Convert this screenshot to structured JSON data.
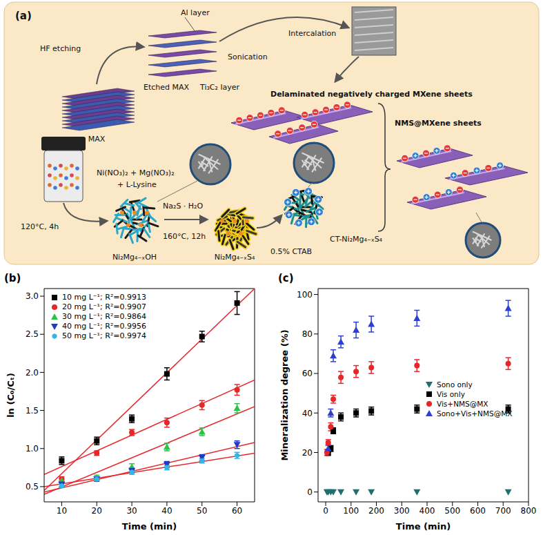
{
  "diagram": {
    "panel": "(a)",
    "labels": {
      "al_layer": "Al layer",
      "hf_etching": "HF etching",
      "etched_max": "Etched MAX",
      "ti3c2_layer": "Ti₃C₂ layer",
      "sonication": "Sonication",
      "intercalation": "Intercalation",
      "delaminated": "Delaminated negatively charged MXene sheets",
      "max": "MAX",
      "reagents_1": "Ni(NO₃)₂ + Mg(NO₃)₂",
      "reagents_2": "+ L-Lysine",
      "nms_mxene": "NMS@MXene sheets",
      "ct_product": "CT-Ni₂Mg₄₋ₓS₄",
      "hydrothermal_1": "120°C, 4h",
      "hydroxide": "Ni₂Mg₄₋ₓOH",
      "sulfur_source": "Na₂S · H₂O",
      "hydrothermal_2": "160°C, 12h",
      "sulfide": "Ni₂Mg₄₋ₓS₄",
      "ctab": "0.5% CTAB"
    }
  },
  "chart_data": [
    {
      "type": "scatter",
      "title": "(b)",
      "x_label": "Time (min)",
      "y_label": "ln (C₀/Cₜ)",
      "xlim": [
        5,
        65
      ],
      "xticks": [
        10,
        20,
        30,
        40,
        50,
        60
      ],
      "ylim": [
        0.3,
        3.1
      ],
      "yticks": [
        0.5,
        {
          "value": 1,
          "label": "1.0"
        },
        1.5,
        {
          "value": 2,
          "label": "2.0"
        },
        2.5,
        {
          "value": 3,
          "label": "3.0"
        }
      ],
      "grid": false,
      "legend": "top left",
      "x": [
        10,
        20,
        30,
        40,
        50,
        60
      ],
      "fit": {
        "x": [
          5,
          65
        ],
        "color": "#e8262a"
      },
      "series": [
        {
          "name": "10 mg L⁻¹; R²=0.9913",
          "color": "#000000",
          "marker": "square",
          "values": [
            0.84,
            1.1,
            1.39,
            1.98,
            2.47,
            2.91
          ],
          "errors": [
            0.05,
            0.05,
            0.05,
            0.08,
            0.07,
            0.15
          ],
          "fit_values": [
            0.45,
            3.1
          ]
        },
        {
          "name": "20 mg L⁻¹; R²=0.9907",
          "color": "#e8262a",
          "marker": "circle",
          "values": [
            0.6,
            0.94,
            1.21,
            1.34,
            1.57,
            1.77
          ],
          "errors": [
            0.03,
            0.03,
            0.04,
            0.06,
            0.06,
            0.07
          ],
          "fit_values": [
            0.66,
            1.9
          ]
        },
        {
          "name": "30 mg L⁻¹; R²=0.9864",
          "color": "#2bc24a",
          "marker": "triangle",
          "values": [
            0.58,
            0.62,
            0.76,
            1.02,
            1.22,
            1.53
          ],
          "errors": [
            0.03,
            0.03,
            0.04,
            0.05,
            0.05,
            0.06
          ],
          "fit_values": [
            0.4,
            1.55
          ]
        },
        {
          "name": "40 mg L⁻¹; R²=0.9956",
          "color": "#2438c8",
          "marker": "triangle_down",
          "values": [
            0.53,
            0.6,
            0.71,
            0.79,
            0.88,
            1.05
          ],
          "errors": [
            0.03,
            0.03,
            0.03,
            0.04,
            0.04,
            0.05
          ],
          "fit_values": [
            0.43,
            1.08
          ]
        },
        {
          "name": "50 mg L⁻¹; R²=0.9974",
          "color": "#33b5e5",
          "marker": "hexagon",
          "values": [
            0.51,
            0.6,
            0.69,
            0.75,
            0.84,
            0.91
          ],
          "errors": [
            0.02,
            0.02,
            0.03,
            0.03,
            0.03,
            0.04
          ],
          "fit_values": [
            0.5,
            0.94
          ]
        }
      ]
    },
    {
      "type": "scatter",
      "title": "(c)",
      "x_label": "Time (min)",
      "y_label": "Mineralization degree (%)",
      "xlim": [
        -30,
        800
      ],
      "xticks": [
        0,
        100,
        200,
        300,
        400,
        500,
        600,
        700,
        800
      ],
      "ylim": [
        -5,
        103
      ],
      "yticks": [
        0,
        20,
        40,
        60,
        80,
        100
      ],
      "grid": false,
      "legend": "right",
      "series": [
        {
          "name": "Sono only",
          "color": "#1f6f6f",
          "marker": "triangle_down",
          "x": [
            5,
            10,
            20,
            30,
            60,
            120,
            180,
            360,
            720
          ],
          "values": [
            0,
            0,
            0,
            0,
            0,
            0,
            0,
            0,
            0
          ]
        },
        {
          "name": "Vis only",
          "color": "#000000",
          "marker": "square",
          "x": [
            10,
            20,
            30,
            60,
            120,
            180,
            360,
            720
          ],
          "values": [
            20,
            22,
            31,
            38,
            40,
            41,
            42,
            42
          ],
          "errors": [
            1.5,
            1.5,
            1.5,
            2,
            2,
            2,
            2,
            2
          ]
        },
        {
          "name": "Vis+NMS@MX",
          "color": "#e8262a",
          "marker": "circle",
          "x": [
            5,
            10,
            20,
            30,
            60,
            120,
            180,
            360,
            720
          ],
          "values": [
            20,
            25,
            33,
            47,
            58,
            61,
            63,
            64,
            65
          ],
          "errors": [
            1.5,
            1.5,
            2,
            2,
            3,
            3,
            3,
            3,
            3
          ]
        },
        {
          "name": "Sono+Vis+NMS@MX",
          "color": "#2b3fd1",
          "marker": "triangle",
          "x": [
            10,
            20,
            30,
            60,
            120,
            180,
            360,
            720
          ],
          "values": [
            22,
            40,
            69,
            76,
            82,
            85,
            88,
            93
          ],
          "errors": [
            2,
            2,
            3,
            3,
            4,
            4,
            4,
            4
          ]
        }
      ]
    }
  ]
}
